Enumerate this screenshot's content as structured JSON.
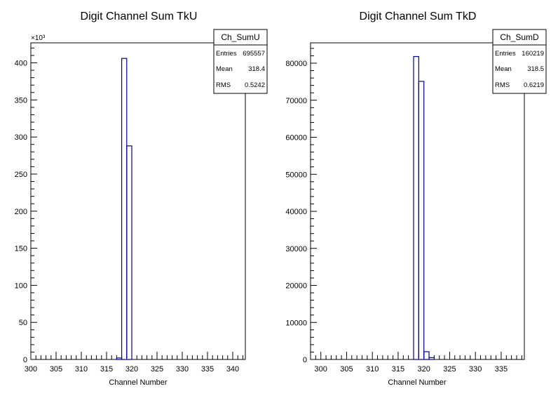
{
  "colors": {
    "background": "#ffffff",
    "frame": "#000000",
    "histogram_line": "#000099"
  },
  "chart_data": [
    {
      "type": "bar",
      "title": "Digit Channel Sum TkU",
      "xlabel": "Channel Number",
      "ylabel": "",
      "y_multiplier_label": "×10³",
      "xlim": [
        300,
        342.5
      ],
      "ylim": [
        0,
        427
      ],
      "xticks": [
        300,
        305,
        310,
        315,
        320,
        325,
        330,
        335,
        340
      ],
      "yticks": [
        0,
        50,
        100,
        150,
        200,
        250,
        300,
        350,
        400
      ],
      "legend_position": "top-right",
      "grid": false,
      "bins": [
        {
          "x0": 317,
          "x1": 318,
          "value": 2
        },
        {
          "x0": 318,
          "x1": 319,
          "value": 406
        },
        {
          "x0": 319,
          "x1": 320,
          "value": 288
        }
      ],
      "stats": {
        "name": "Ch_SumU",
        "rows": [
          {
            "label": "Entries",
            "value": "695557"
          },
          {
            "label": "Mean",
            "value": "318.4"
          },
          {
            "label": "RMS",
            "value": "0.5242"
          }
        ]
      }
    },
    {
      "type": "bar",
      "title": "Digit Channel Sum TkD",
      "xlabel": "Channel Number",
      "ylabel": "",
      "y_multiplier_label": "",
      "xlim": [
        298,
        339.5
      ],
      "ylim": [
        0,
        85500
      ],
      "xticks": [
        300,
        305,
        310,
        315,
        320,
        325,
        330,
        335
      ],
      "yticks": [
        0,
        10000,
        20000,
        30000,
        40000,
        50000,
        60000,
        70000,
        80000
      ],
      "legend_position": "top-right",
      "grid": false,
      "bins": [
        {
          "x0": 317,
          "x1": 318,
          "value": 0
        },
        {
          "x0": 318,
          "x1": 319,
          "value": 81800
        },
        {
          "x0": 319,
          "x1": 320,
          "value": 75100
        },
        {
          "x0": 320,
          "x1": 321,
          "value": 2100
        },
        {
          "x0": 321,
          "x1": 322,
          "value": 500
        }
      ],
      "stats": {
        "name": "Ch_SumD",
        "rows": [
          {
            "label": "Entries",
            "value": "160219"
          },
          {
            "label": "Mean",
            "value": "318.5"
          },
          {
            "label": "RMS",
            "value": "0.6219"
          }
        ]
      }
    }
  ]
}
